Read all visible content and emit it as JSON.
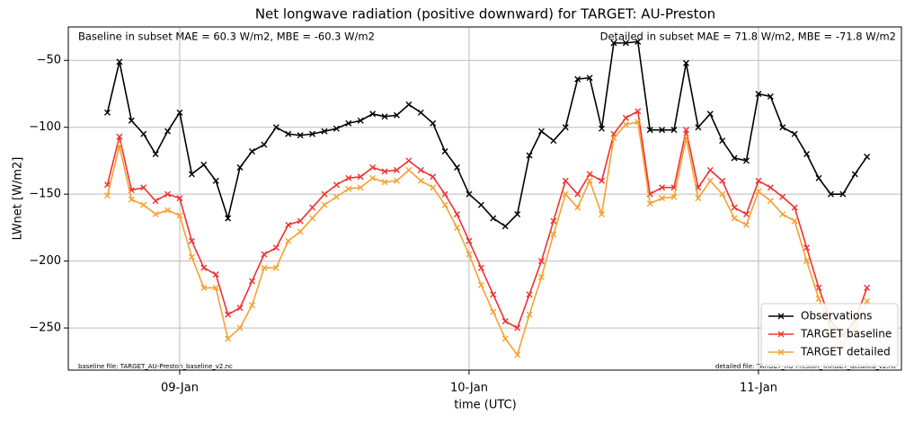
{
  "chart_data": {
    "type": "line",
    "title": "Net longwave radiation (positive downward) for TARGET: AU-Preston",
    "xlabel": "time (UTC)",
    "ylabel": "LWnet [W/m2]",
    "annotations": [
      "Baseline in subset MAE = 60.3 W/m2, MBE = -60.3 W/m2",
      "Detailed in subset MAE = 71.8 W/m2, MBE = -71.8 W/m2",
      "baseline file: TARGET_AU-Preston_baseline_v2.nc",
      "detailed file: TARGET_AU-Preston_TARGET_detailed_v2.nc"
    ],
    "x": [
      8.75,
      8.7917,
      8.8333,
      8.875,
      8.9167,
      8.9583,
      9,
      9.0417,
      9.0833,
      9.125,
      9.1667,
      9.2083,
      9.25,
      9.2917,
      9.3333,
      9.375,
      9.4167,
      9.4583,
      9.5,
      9.5417,
      9.5833,
      9.625,
      9.6667,
      9.7083,
      9.75,
      9.7917,
      9.8333,
      9.875,
      9.9167,
      9.9583,
      10,
      10.0417,
      10.0833,
      10.125,
      10.1667,
      10.2083,
      10.25,
      10.2917,
      10.3333,
      10.375,
      10.4167,
      10.4583,
      10.5,
      10.5417,
      10.5833,
      10.625,
      10.6667,
      10.7083,
      10.75,
      10.7917,
      10.8333,
      10.875,
      10.9167,
      10.9583,
      11,
      11.0417,
      11.0833,
      11.125,
      11.1667,
      11.2083,
      11.25,
      11.2917,
      11.3333,
      11.375
    ],
    "series": [
      {
        "name": "Observations",
        "color": "#000000",
        "values": [
          -89,
          -51,
          -95,
          -105,
          -120,
          -103,
          -89,
          -135,
          -128,
          -140,
          -168,
          -130,
          -118,
          -113,
          -100,
          -105,
          -106,
          -105,
          -103,
          -101,
          -97,
          -95,
          -90,
          -92,
          -91,
          -83,
          -89,
          -97,
          -118,
          -130,
          -150,
          -158,
          -168,
          -174,
          -165,
          -121,
          -103,
          -110,
          -100,
          -64,
          -63,
          -101,
          -37,
          -37,
          -36,
          -102,
          -102,
          -102,
          -52,
          -100,
          -90,
          -110,
          -123,
          -125,
          -75,
          -77,
          -100,
          -105,
          -120,
          -138,
          -150,
          -150,
          -135,
          -122
        ]
      },
      {
        "name": "TARGET baseline",
        "color": "#f03030",
        "values": [
          -143,
          -107,
          -147,
          -145,
          -155,
          -150,
          -153,
          -185,
          -205,
          -210,
          -240,
          -235,
          -215,
          -195,
          -190,
          -173,
          -170,
          -160,
          -150,
          -143,
          -138,
          -137,
          -130,
          -133,
          -132,
          -125,
          -132,
          -137,
          -150,
          -165,
          -185,
          -205,
          -225,
          -245,
          -250,
          -225,
          -200,
          -170,
          -140,
          -150,
          -135,
          -140,
          -105,
          -93,
          -88,
          -150,
          -145,
          -145,
          -102,
          -145,
          -132,
          -140,
          -160,
          -165,
          -140,
          -145,
          -152,
          -160,
          -190,
          -220,
          -245,
          -255,
          -245,
          -220
        ]
      },
      {
        "name": "TARGET detailed",
        "color": "#f7a030",
        "values": [
          -151,
          -114,
          -154,
          -158,
          -165,
          -162,
          -166,
          -197,
          -220,
          -220,
          -258,
          -250,
          -233,
          -205,
          -205,
          -185,
          -178,
          -168,
          -158,
          -152,
          -146,
          -145,
          -138,
          -141,
          -140,
          -132,
          -140,
          -145,
          -158,
          -175,
          -195,
          -218,
          -238,
          -258,
          -270,
          -240,
          -212,
          -180,
          -150,
          -160,
          -140,
          -165,
          -108,
          -98,
          -96,
          -157,
          -153,
          -152,
          -108,
          -153,
          -140,
          -150,
          -168,
          -173,
          -148,
          -155,
          -165,
          -170,
          -200,
          -228,
          -250,
          -262,
          -250,
          -230
        ]
      }
    ],
    "xlim": [
      8.615,
      11.494
    ],
    "xticks": [
      {
        "value": 9,
        "label": "09-Jan"
      },
      {
        "value": 10,
        "label": "10-Jan"
      },
      {
        "value": 11,
        "label": "11-Jan"
      }
    ],
    "ylim": [
      -281.5,
      -25
    ],
    "yticks": [
      {
        "value": -50,
        "label": "−50"
      },
      {
        "value": -100,
        "label": "−100"
      },
      {
        "value": -150,
        "label": "−150"
      },
      {
        "value": -200,
        "label": "−200"
      },
      {
        "value": -250,
        "label": "−250"
      }
    ],
    "grid": true,
    "legend": "lower right"
  }
}
